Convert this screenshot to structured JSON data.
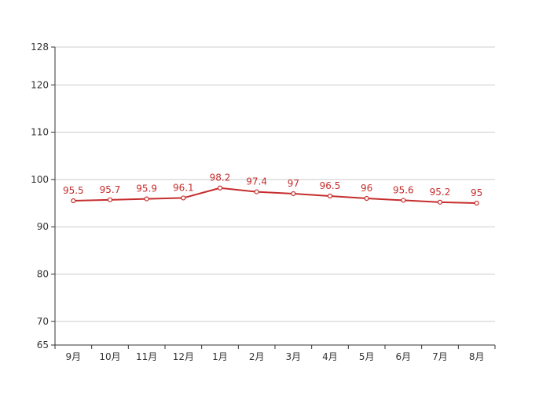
{
  "chart_data": {
    "type": "line",
    "categories": [
      "9月",
      "10月",
      "11月",
      "12月",
      "1月",
      "2月",
      "3月",
      "4月",
      "5月",
      "6月",
      "7月",
      "8月"
    ],
    "series": [
      {
        "values": [
          95.5,
          95.7,
          95.9,
          96.1,
          98.2,
          97.4,
          97,
          96.5,
          96,
          95.6,
          95.2,
          95
        ]
      }
    ],
    "value_labels": [
      "95.5",
      "95.7",
      "95.9",
      "96.1",
      "98.2",
      "97.4",
      "97",
      "96.5",
      "96",
      "95.6",
      "95.2",
      "95"
    ],
    "y_ticks": [
      65,
      70,
      80,
      90,
      100,
      110,
      120,
      128
    ],
    "y_tick_labels": [
      "65",
      "70",
      "80",
      "90",
      "100",
      "110",
      "120",
      "128"
    ],
    "ylim": [
      65,
      128
    ],
    "grid": true,
    "legend": "none",
    "colors": {
      "line": "#c62d2d",
      "marker_fill": "#ffffff",
      "label": "#c62d2d",
      "grid": "#cccccc",
      "axis": "#333333"
    }
  }
}
